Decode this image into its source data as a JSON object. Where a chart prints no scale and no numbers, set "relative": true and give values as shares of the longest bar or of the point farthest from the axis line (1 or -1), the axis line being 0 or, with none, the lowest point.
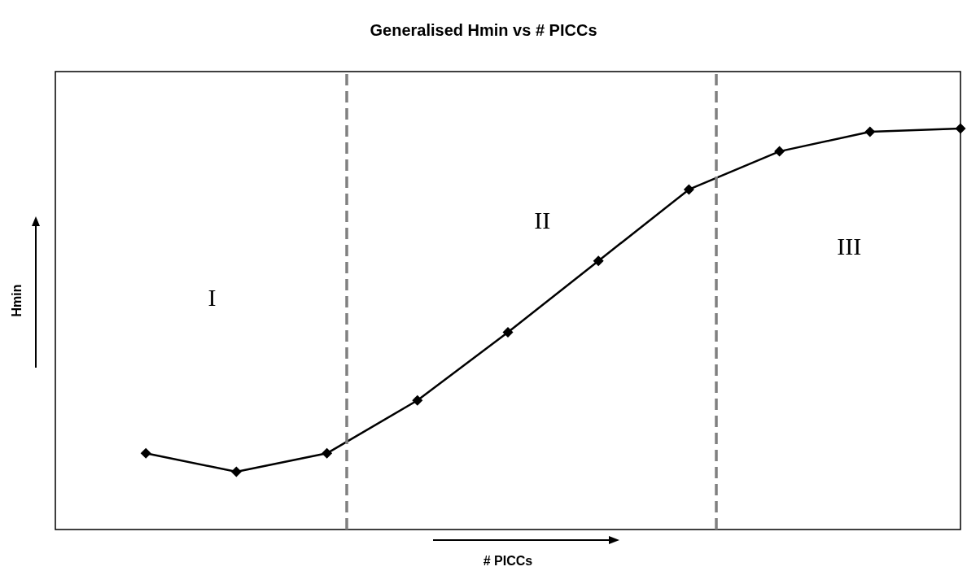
{
  "chart_data": {
    "type": "line",
    "title": "Generalised Hmin vs # PICCs",
    "xlabel": "# PICCs",
    "ylabel": "Hmin",
    "relative": true,
    "grid": false,
    "marker": "diamond",
    "line_style": "solid",
    "categories": [
      null,
      null,
      null,
      null,
      null,
      null,
      null,
      null,
      null,
      null
    ],
    "series": [
      {
        "color": "#000000",
        "values": [
          0.19,
          0.144,
          0.19,
          0.322,
          0.492,
          0.67,
          0.848,
          0.943,
          0.992,
          1
        ]
      }
    ],
    "annotations": [
      "I",
      "II",
      "III"
    ]
  }
}
